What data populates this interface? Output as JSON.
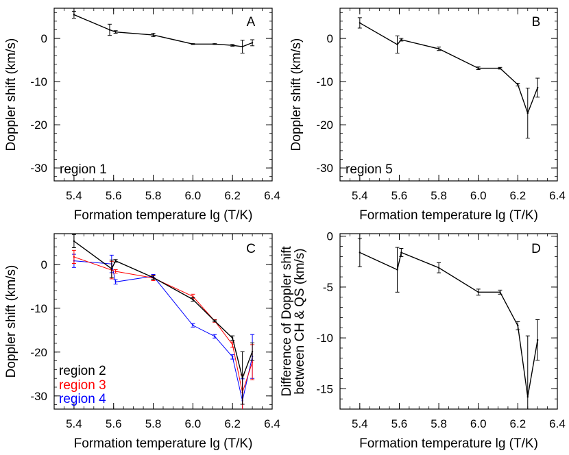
{
  "chart_data": [
    {
      "id": "A",
      "type": "line",
      "panel_label": "A",
      "annotation": "region 1",
      "xlabel": "Formation temperature lg (T/K)",
      "ylabel": "Doppler shift (km/s)",
      "xlim": [
        5.3,
        6.4
      ],
      "ylim": [
        -33,
        7
      ],
      "xticks": [
        5.4,
        5.6,
        5.8,
        6.0,
        6.2,
        6.4
      ],
      "xtick_labels": [
        "5.4",
        "5.6",
        "5.8",
        "6.0",
        "6.2",
        "6.4"
      ],
      "yticks": [
        0,
        -10,
        -20,
        -30
      ],
      "ytick_labels": [
        "0",
        "-10",
        "-20",
        "-30"
      ],
      "series": [
        {
          "color": "#000000",
          "x": [
            5.4,
            5.58,
            5.61,
            5.8,
            6.0,
            6.11,
            6.2,
            6.25,
            6.3
          ],
          "y": [
            5.5,
            2.0,
            1.5,
            0.8,
            -1.3,
            -1.3,
            -1.6,
            -1.9,
            -1.0
          ],
          "err": [
            0.8,
            1.3,
            0.3,
            0.4,
            0.1,
            0.1,
            0.2,
            1.5,
            0.7
          ]
        }
      ]
    },
    {
      "id": "B",
      "type": "line",
      "panel_label": "B",
      "annotation": "region 5",
      "xlabel": "Formation temperature lg (T/K)",
      "ylabel": "Doppler shift (km/s)",
      "xlim": [
        5.3,
        6.4
      ],
      "ylim": [
        -33,
        7
      ],
      "xticks": [
        5.4,
        5.6,
        5.8,
        6.0,
        6.2,
        6.4
      ],
      "xtick_labels": [
        "5.4",
        "5.6",
        "5.8",
        "6.0",
        "6.2",
        "6.4"
      ],
      "yticks": [
        0,
        -10,
        -20,
        -30
      ],
      "ytick_labels": [
        "0",
        "-10",
        "-20",
        "-30"
      ],
      "series": [
        {
          "color": "#000000",
          "x": [
            5.4,
            5.59,
            5.61,
            5.8,
            6.0,
            6.11,
            6.2,
            6.25,
            6.3
          ],
          "y": [
            3.6,
            -1.4,
            -0.3,
            -2.4,
            -6.9,
            -6.9,
            -10.7,
            -17.3,
            -11.4
          ],
          "err": [
            1.2,
            2.0,
            0.3,
            0.4,
            0.3,
            0.2,
            0.3,
            5.8,
            2.2
          ]
        }
      ]
    },
    {
      "id": "C",
      "type": "line",
      "panel_label": "C",
      "xlabel": "Formation temperature lg (T/K)",
      "ylabel": "Doppler shift (km/s)",
      "xlim": [
        5.3,
        6.4
      ],
      "ylim": [
        -33,
        7
      ],
      "xticks": [
        5.4,
        5.6,
        5.8,
        6.0,
        6.2,
        6.4
      ],
      "xtick_labels": [
        "5.4",
        "5.6",
        "5.8",
        "6.0",
        "6.2",
        "6.4"
      ],
      "yticks": [
        0,
        -10,
        -20,
        -30
      ],
      "ytick_labels": [
        "0",
        "-10",
        "-20",
        "-30"
      ],
      "legend_position": "bottom-left",
      "series": [
        {
          "name": "region 2",
          "color": "#000000",
          "x": [
            5.4,
            5.59,
            5.61,
            5.8,
            6.0,
            6.11,
            6.2,
            6.25,
            6.3
          ],
          "y": [
            5.3,
            -1.0,
            0.8,
            -3.0,
            -8.0,
            -12.9,
            -16.8,
            -25.9,
            -19.9
          ],
          "err": [
            1.5,
            2.0,
            0.3,
            0.4,
            0.4,
            0.2,
            0.5,
            6.0,
            2.0
          ]
        },
        {
          "name": "region 3",
          "color": "#ff0000",
          "x": [
            5.4,
            5.59,
            5.61,
            5.8,
            6.0,
            6.11,
            6.2,
            6.25,
            6.3
          ],
          "y": [
            1.7,
            -1.3,
            -1.6,
            -3.1,
            -7.3,
            -12.9,
            -18.3,
            -29.2,
            -22.3
          ],
          "err": [
            1.5,
            2.0,
            0.4,
            0.6,
            0.5,
            0.3,
            0.6,
            4.0,
            4.0
          ]
        },
        {
          "name": "region 4",
          "color": "#0000ff",
          "x": [
            5.4,
            5.59,
            5.61,
            5.8,
            6.0,
            6.11,
            6.2,
            6.25,
            6.3
          ],
          "y": [
            0.8,
            0.1,
            -4.0,
            -2.7,
            -13.9,
            -16.4,
            -21.1,
            -31.1,
            -21.0
          ],
          "err": [
            1.5,
            2.0,
            0.5,
            0.4,
            0.4,
            0.4,
            0.5,
            5.0,
            5.0
          ]
        }
      ]
    },
    {
      "id": "D",
      "type": "line",
      "panel_label": "D",
      "xlabel": "Formation temperature lg (T/K)",
      "ylabel_lines": [
        "Difference of Doppler shift",
        "between CH & QS (km/s)"
      ],
      "xlim": [
        5.3,
        6.4
      ],
      "ylim": [
        -17,
        0.25
      ],
      "xticks": [
        5.4,
        5.6,
        5.8,
        6.0,
        6.2,
        6.4
      ],
      "xtick_labels": [
        "5.4",
        "5.6",
        "5.8",
        "6.0",
        "6.2",
        "6.4"
      ],
      "yticks": [
        0,
        -5,
        -10,
        -15
      ],
      "ytick_labels": [
        "0",
        "-5",
        "-10",
        "-15"
      ],
      "series": [
        {
          "color": "#000000",
          "x": [
            5.4,
            5.59,
            5.61,
            5.8,
            6.0,
            6.11,
            6.2,
            6.25,
            6.3
          ],
          "y": [
            -1.6,
            -3.3,
            -1.6,
            -3.1,
            -5.5,
            -5.5,
            -8.8,
            -15.8,
            -10.2
          ],
          "err": [
            1.4,
            2.2,
            0.4,
            0.5,
            0.3,
            0.2,
            0.4,
            6.0,
            2.0
          ]
        }
      ]
    }
  ]
}
